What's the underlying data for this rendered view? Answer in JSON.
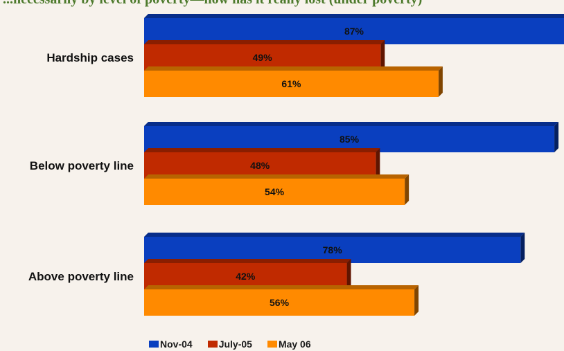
{
  "chart_title": "...necessarily by level of poverty—how has it really lost (under poverty)",
  "chart_data": {
    "type": "bar",
    "orientation": "horizontal",
    "title": "",
    "categories": [
      "Hardship cases",
      "Below poverty line",
      "Above poverty line"
    ],
    "series": [
      {
        "name": "Nov-04",
        "color": "#0a3fbf",
        "values": [
          87,
          85,
          78
        ],
        "labels": [
          "87%",
          "85%",
          "78%"
        ]
      },
      {
        "name": "July-05",
        "color": "#c02a00",
        "values": [
          49,
          48,
          42
        ],
        "labels": [
          "49%",
          "48%",
          "42%"
        ]
      },
      {
        "name": "May 06",
        "color": "#ff8a00",
        "values": [
          61,
          54,
          56
        ],
        "labels": [
          "61%",
          "54%",
          "56%"
        ]
      }
    ],
    "xlim": [
      0,
      87
    ],
    "value_format": "percent",
    "legend_position": "bottom",
    "grid": false,
    "style": "3d"
  }
}
